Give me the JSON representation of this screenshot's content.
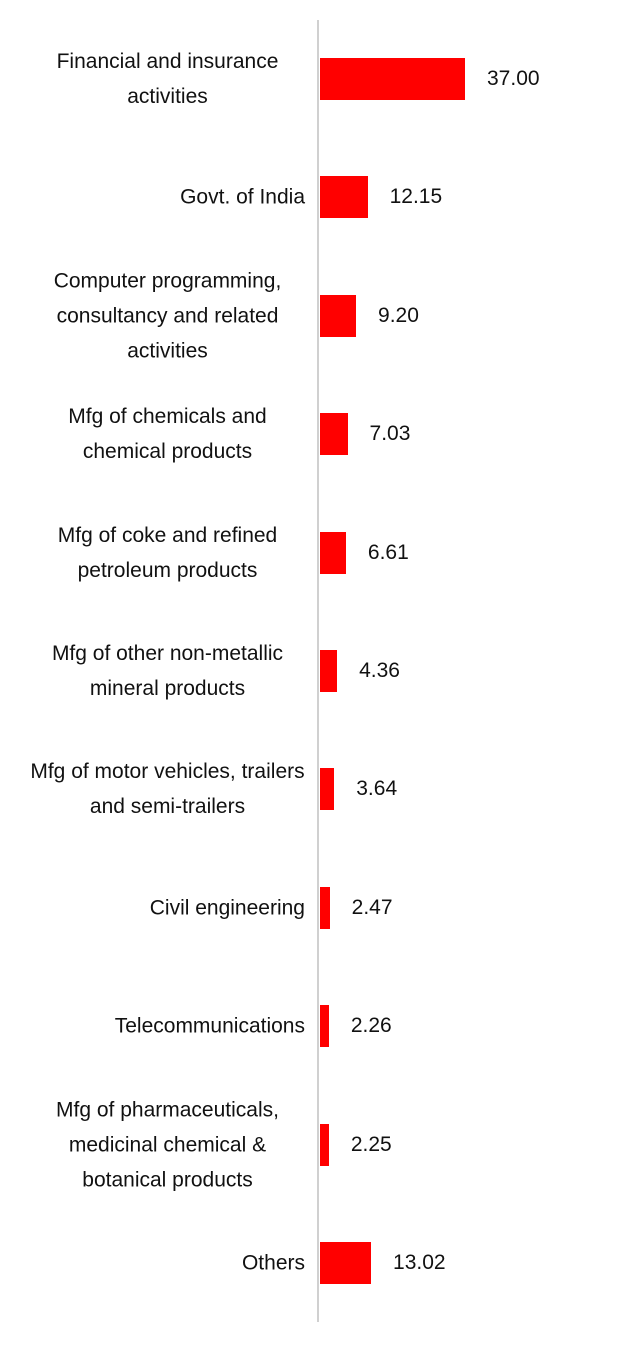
{
  "chart_data": {
    "type": "bar",
    "orientation": "horizontal",
    "color": "#ff0000",
    "categories": [
      "Financial and insurance activities",
      "Govt. of India",
      "Computer programming, consultancy and related activities",
      "Mfg of chemicals and chemical products",
      "Mfg of coke and refined petroleum products",
      "Mfg of other non-metallic mineral products",
      "Mfg of motor vehicles, trailers and semi-trailers",
      "Civil engineering",
      "Telecommunications",
      "Mfg of pharmaceuticals, medicinal chemical & botanical products",
      "Others"
    ],
    "values": [
      37,
      12.15,
      9.2,
      7.03,
      6.61,
      4.36,
      3.64,
      2.47,
      2.26,
      2.25,
      13.02
    ],
    "value_labels": [
      "37.00",
      "12.15",
      "9.20",
      "7.03",
      "6.61",
      "4.36",
      "3.64",
      "2.47",
      "2.26",
      "2.25",
      "13.02"
    ]
  }
}
